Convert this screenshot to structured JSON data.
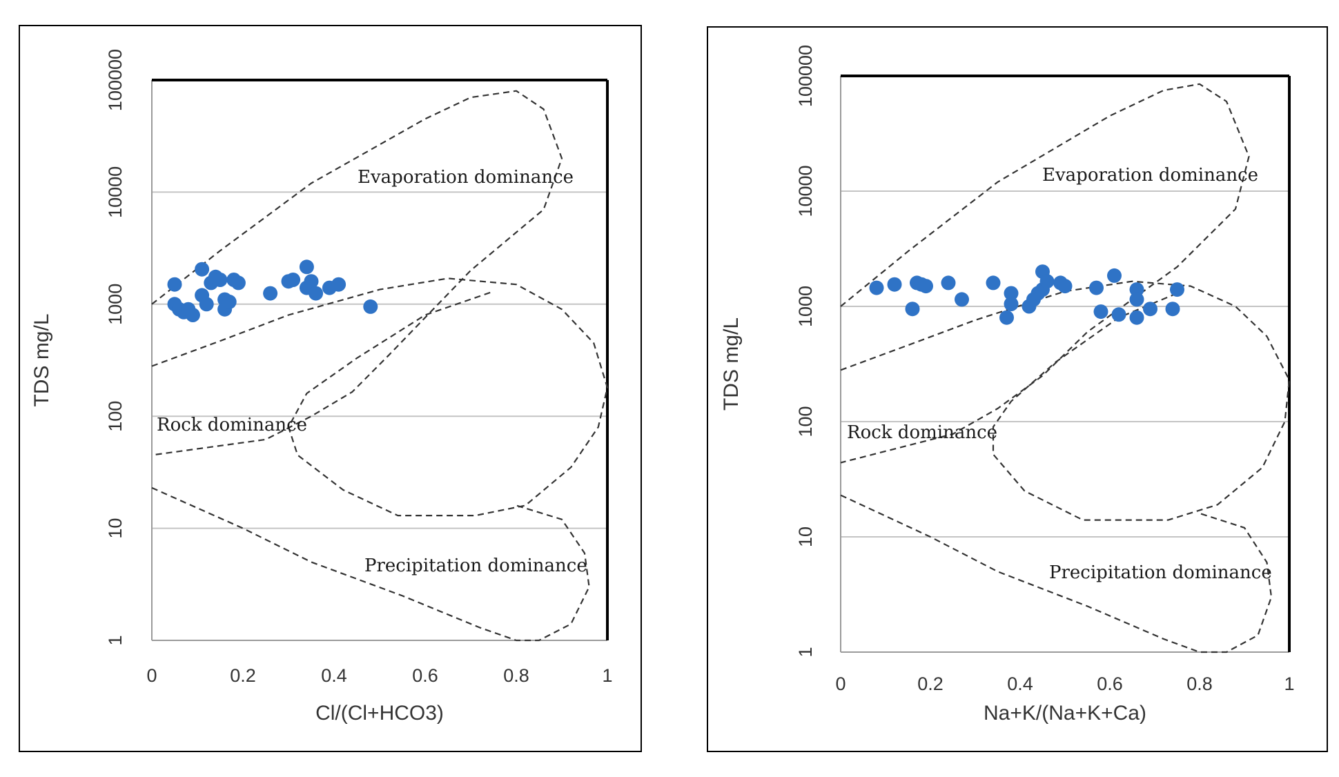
{
  "chart_data": [
    {
      "type": "scatter",
      "xlabel": "Cl/(Cl+HCO3)",
      "ylabel": "TDS mg/L",
      "xlim": [
        0,
        1
      ],
      "ylim": [
        1,
        100000
      ],
      "yscale": "log",
      "grid": true,
      "x_ticks": [
        "0",
        "0.2",
        "0.4",
        "0.6",
        "0.8",
        "1"
      ],
      "y_ticks": [
        "1",
        "10",
        "100",
        "1000",
        "10000",
        "100000"
      ],
      "color": "#2f73c6",
      "annotations": [
        "Evaporation dominance",
        "Rock dominance",
        "Precipitation dominance"
      ],
      "points": [
        {
          "x": 0.05,
          "y": 1500
        },
        {
          "x": 0.05,
          "y": 1000
        },
        {
          "x": 0.06,
          "y": 900
        },
        {
          "x": 0.07,
          "y": 850
        },
        {
          "x": 0.08,
          "y": 900
        },
        {
          "x": 0.09,
          "y": 800
        },
        {
          "x": 0.11,
          "y": 2050
        },
        {
          "x": 0.11,
          "y": 1200
        },
        {
          "x": 0.12,
          "y": 1000
        },
        {
          "x": 0.13,
          "y": 1550
        },
        {
          "x": 0.14,
          "y": 1750
        },
        {
          "x": 0.15,
          "y": 1650
        },
        {
          "x": 0.16,
          "y": 1100
        },
        {
          "x": 0.16,
          "y": 900
        },
        {
          "x": 0.17,
          "y": 1050
        },
        {
          "x": 0.18,
          "y": 1650
        },
        {
          "x": 0.19,
          "y": 1550
        },
        {
          "x": 0.26,
          "y": 1250
        },
        {
          "x": 0.3,
          "y": 1600
        },
        {
          "x": 0.31,
          "y": 1650
        },
        {
          "x": 0.34,
          "y": 2150
        },
        {
          "x": 0.34,
          "y": 1400
        },
        {
          "x": 0.35,
          "y": 1600
        },
        {
          "x": 0.36,
          "y": 1250
        },
        {
          "x": 0.39,
          "y": 1400
        },
        {
          "x": 0.41,
          "y": 1500
        },
        {
          "x": 0.48,
          "y": 950
        }
      ]
    },
    {
      "type": "scatter",
      "xlabel": "Na+K/(Na+K+Ca)",
      "ylabel": "TDS mg/L",
      "xlim": [
        0,
        1
      ],
      "ylim": [
        1,
        100000
      ],
      "yscale": "log",
      "grid": true,
      "x_ticks": [
        "0",
        "0.2",
        "0.4",
        "0.6",
        "0.8",
        "1"
      ],
      "y_ticks": [
        "1",
        "10",
        "100",
        "1000",
        "10000",
        "100000"
      ],
      "color": "#2f73c6",
      "annotations": [
        "Evaporation dominance",
        "Rock dominance",
        "Precipitation dominance"
      ],
      "points": [
        {
          "x": 0.08,
          "y": 1450
        },
        {
          "x": 0.12,
          "y": 1550
        },
        {
          "x": 0.16,
          "y": 950
        },
        {
          "x": 0.17,
          "y": 1600
        },
        {
          "x": 0.18,
          "y": 1550
        },
        {
          "x": 0.19,
          "y": 1500
        },
        {
          "x": 0.24,
          "y": 1600
        },
        {
          "x": 0.27,
          "y": 1150
        },
        {
          "x": 0.34,
          "y": 1600
        },
        {
          "x": 0.37,
          "y": 800
        },
        {
          "x": 0.38,
          "y": 1300
        },
        {
          "x": 0.38,
          "y": 1050
        },
        {
          "x": 0.42,
          "y": 1000
        },
        {
          "x": 0.43,
          "y": 1150
        },
        {
          "x": 0.44,
          "y": 1300
        },
        {
          "x": 0.45,
          "y": 1400
        },
        {
          "x": 0.45,
          "y": 2000
        },
        {
          "x": 0.46,
          "y": 1650
        },
        {
          "x": 0.49,
          "y": 1600
        },
        {
          "x": 0.5,
          "y": 1500
        },
        {
          "x": 0.57,
          "y": 1450
        },
        {
          "x": 0.58,
          "y": 900
        },
        {
          "x": 0.61,
          "y": 1850
        },
        {
          "x": 0.62,
          "y": 850
        },
        {
          "x": 0.66,
          "y": 1400
        },
        {
          "x": 0.66,
          "y": 1150
        },
        {
          "x": 0.66,
          "y": 800
        },
        {
          "x": 0.69,
          "y": 950
        },
        {
          "x": 0.74,
          "y": 950
        },
        {
          "x": 0.75,
          "y": 1400
        }
      ]
    }
  ]
}
